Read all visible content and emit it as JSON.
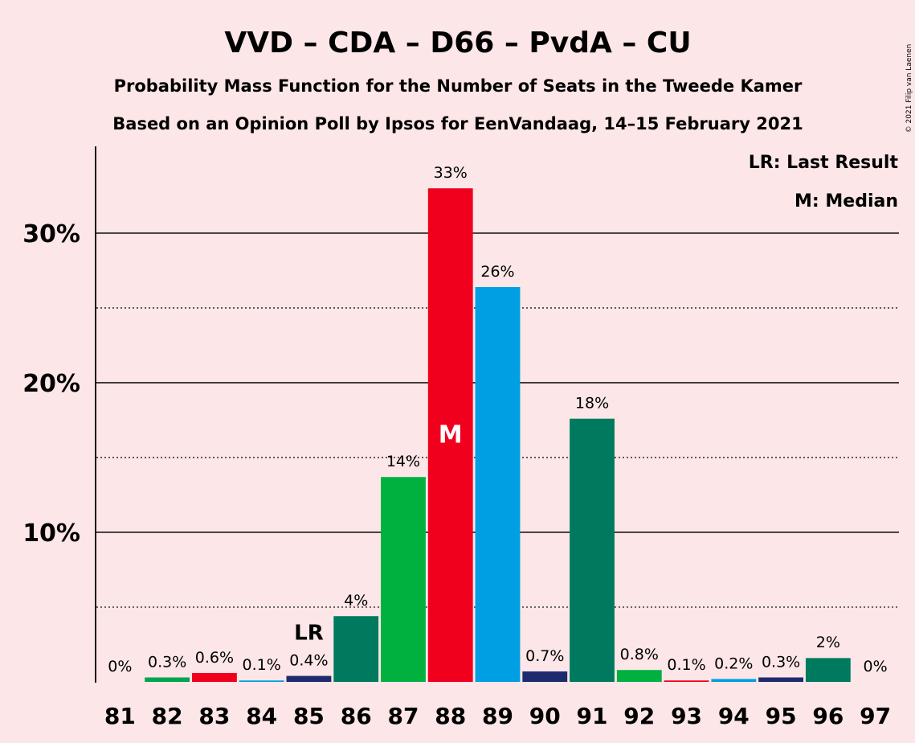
{
  "header": {
    "title": "VVD – CDA – D66 – PvdA – CU",
    "subtitle1": "Probability Mass Function for the Number of Seats in the Tweede Kamer",
    "subtitle2": "Based on an Opinion Poll by Ipsos for EenVandaag, 14–15 February 2021"
  },
  "legend": {
    "last_result": "LR: Last Result",
    "median": "M: Median"
  },
  "copyright": "© 2021 Filip van Laenen",
  "markers": {
    "last_result_label": "LR",
    "last_result_seat": 85,
    "median_label": "M",
    "median_seat": 88
  },
  "colors": {
    "background": "#fce6e7",
    "VVD": "#1e2a6e",
    "CDA": "#00a54f",
    "D66": "#00a650",
    "PvdA": "#f0001c",
    "CU": "#009fe3",
    "teal": "#007a5e"
  },
  "chart_data": {
    "type": "bar",
    "categories": [
      "81",
      "82",
      "83",
      "84",
      "85",
      "86",
      "87",
      "88",
      "89",
      "90",
      "91",
      "92",
      "93",
      "94",
      "95",
      "96",
      "97"
    ],
    "values": [
      0,
      0.3,
      0.6,
      0.1,
      0.4,
      4.4,
      13.7,
      33.0,
      26.4,
      0.7,
      17.6,
      0.8,
      0.1,
      0.2,
      0.3,
      1.6,
      0
    ],
    "labels": [
      "0%",
      "0.3%",
      "0.6%",
      "0.1%",
      "0.4%",
      "4%",
      "14%",
      "33%",
      "26%",
      "0.7%",
      "18%",
      "0.8%",
      "0.1%",
      "0.2%",
      "0.3%",
      "2%",
      "0%"
    ],
    "colors": [
      "#1e2a6e",
      "#00a54f",
      "#f0001c",
      "#009fe3",
      "#1e2a6e",
      "#007a5e",
      "#00b140",
      "#f0001c",
      "#009fe3",
      "#1e2a6e",
      "#007a5e",
      "#00b140",
      "#f0001c",
      "#009fe3",
      "#1e2a6e",
      "#007a5e",
      "#00b140"
    ],
    "yticks": [
      10,
      20,
      30
    ],
    "ytick_labels": [
      "10%",
      "20%",
      "30%"
    ],
    "minor_gridlines": [
      5,
      15,
      25
    ],
    "ylim": [
      0,
      35.8
    ],
    "grid": true,
    "legend_position": "top-right"
  }
}
